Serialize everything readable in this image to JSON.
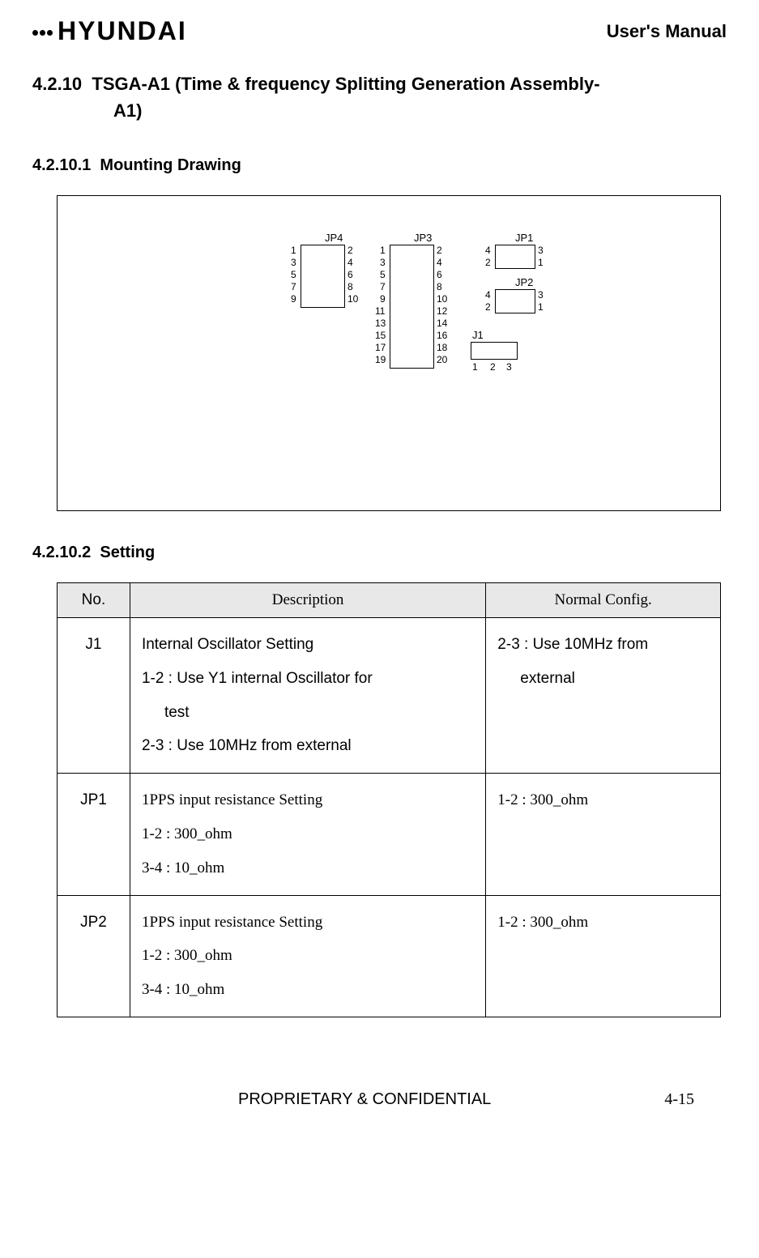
{
  "header": {
    "logo_text": "HYUNDAI",
    "manual_title": "User's Manual"
  },
  "section": {
    "number": "4.2.10",
    "title_line1": "TSGA-A1 (Time & frequency Splitting Generation Assembly-",
    "title_line2": "A1)"
  },
  "subsection_drawing": {
    "number": "4.2.10.1",
    "title": "Mounting Drawing"
  },
  "subsection_setting": {
    "number": "4.2.10.2",
    "title": "Setting"
  },
  "drawing": {
    "connectors": {
      "JP4": {
        "label": "JP4",
        "left_pins": [
          "1",
          "3",
          "5",
          "7",
          "9"
        ],
        "right_pins": [
          "2",
          "4",
          "6",
          "8",
          "10"
        ]
      },
      "JP3": {
        "label": "JP3",
        "left_pins": [
          "1",
          "3",
          "5",
          "7",
          "9",
          "11",
          "13",
          "15",
          "17",
          "19"
        ],
        "right_pins": [
          "2",
          "4",
          "6",
          "8",
          "10",
          "12",
          "14",
          "16",
          "18",
          "20"
        ]
      },
      "JP1": {
        "label": "JP1",
        "left_pins": [
          "4",
          "2"
        ],
        "right_pins": [
          "3",
          "1"
        ]
      },
      "JP2": {
        "label": "JP2",
        "left_pins": [
          "4",
          "2"
        ],
        "right_pins": [
          "3",
          "1"
        ]
      },
      "J1": {
        "label": "J1",
        "bottom_pins": [
          "1",
          "2",
          "3"
        ]
      }
    }
  },
  "table": {
    "headers": {
      "no": "No.",
      "desc": "Description",
      "config": "Normal Config."
    },
    "rows": [
      {
        "no": "J1",
        "desc_lines": [
          "Internal Oscillator Setting",
          "1-2 : Use Y1 internal Oscillator for",
          "test",
          "2-3 : Use 10MHz from external"
        ],
        "desc_indent_idx": 2,
        "desc_font": "sans",
        "config_lines": [
          "2-3 : Use 10MHz from",
          "external"
        ],
        "config_indent_idx": 1,
        "config_font": "sans"
      },
      {
        "no": "JP1",
        "desc_lines": [
          "1PPS input resistance Setting",
          "1-2 : 300_ohm",
          "3-4 : 10_ohm"
        ],
        "desc_indent_idx": -1,
        "desc_font": "serif",
        "config_lines": [
          "1-2 : 300_ohm"
        ],
        "config_indent_idx": -1,
        "config_font": "serif"
      },
      {
        "no": "JP2",
        "desc_lines": [
          "1PPS input resistance Setting",
          "1-2 : 300_ohm",
          "3-4 : 10_ohm"
        ],
        "desc_indent_idx": -1,
        "desc_font": "serif",
        "config_lines": [
          "1-2 : 300_ohm"
        ],
        "config_indent_idx": -1,
        "config_font": "serif"
      }
    ]
  },
  "footer": {
    "center": "PROPRIETARY & CONFIDENTIAL",
    "right": "4-15"
  },
  "colors": {
    "background": "#ffffff",
    "text": "#000000",
    "table_header_bg": "#e8e8e8",
    "border": "#000000"
  }
}
